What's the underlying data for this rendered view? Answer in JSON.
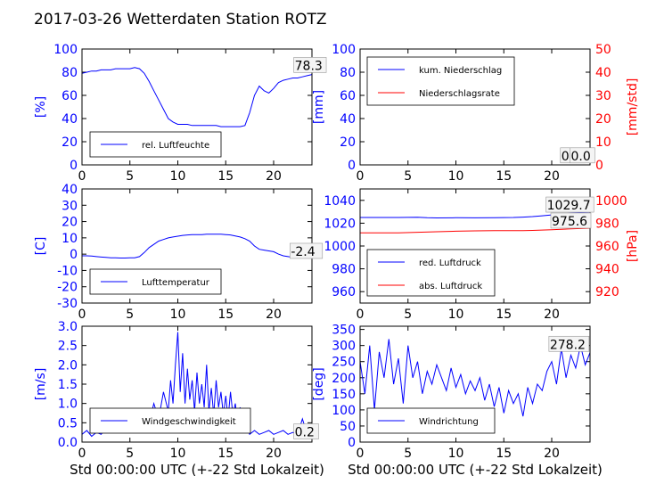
{
  "page_title": "2017-03-26 Wetterdaten Station ROTZ",
  "colors": {
    "primary": "#0000ff",
    "secondary": "#ff0000",
    "axis": "#000000"
  },
  "chart_data": [
    {
      "id": "humidity",
      "type": "line",
      "ylabel": "[%]",
      "ylabel_color": "#0000ff",
      "ylim": [
        0,
        100
      ],
      "yticks": [
        0,
        20,
        40,
        60,
        80,
        100
      ],
      "xlim": [
        0,
        24
      ],
      "xticks": [
        0,
        5,
        10,
        15,
        20
      ],
      "series": [
        {
          "name": "rel. Luftfeuchte",
          "color": "#0000ff",
          "x": [
            0,
            0.5,
            1,
            1.5,
            2,
            2.5,
            3,
            3.5,
            4,
            4.5,
            5,
            5.5,
            6,
            6.5,
            7,
            7.5,
            8,
            8.5,
            9,
            9.5,
            10,
            10.5,
            11,
            11.5,
            12,
            12.5,
            13,
            13.5,
            14,
            14.5,
            15,
            15.5,
            16,
            16.5,
            17,
            17.5,
            18,
            18.5,
            19,
            19.5,
            20,
            20.5,
            21,
            21.5,
            22,
            22.5,
            23,
            23.5,
            24
          ],
          "y": [
            79,
            80,
            81,
            81,
            82,
            82,
            82,
            83,
            83,
            83,
            83,
            84,
            83,
            79,
            72,
            64,
            56,
            48,
            40,
            37,
            35,
            35,
            35,
            34,
            34,
            34,
            34,
            34,
            34,
            33,
            33,
            33,
            33,
            33,
            34,
            45,
            60,
            68,
            64,
            62,
            66,
            71,
            73,
            74,
            75,
            75,
            76,
            77,
            78
          ]
        }
      ],
      "legend": "lower-left",
      "annotations": [
        {
          "text": "78.3",
          "x": 22.2,
          "y": 82
        }
      ]
    },
    {
      "id": "precipitation",
      "type": "line",
      "ylabel": "[mm]",
      "ylabel_color": "#0000ff",
      "ylim": [
        0,
        100
      ],
      "yticks": [
        0,
        20,
        40,
        60,
        80,
        100
      ],
      "y2label": "[mm/std]",
      "y2label_color": "#ff0000",
      "y2lim": [
        0,
        50
      ],
      "y2ticks": [
        0,
        10,
        20,
        30,
        40,
        50
      ],
      "xlim": [
        0,
        24
      ],
      "xticks": [
        0,
        5,
        10,
        15,
        20
      ],
      "series": [
        {
          "name": "kum. Niederschlag",
          "color": "#0000ff",
          "x": [
            0,
            24
          ],
          "y": [
            0,
            0
          ]
        },
        {
          "name": "Niederschlagsrate",
          "color": "#ff0000",
          "x": [
            0,
            24
          ],
          "y": [
            0,
            0
          ],
          "axis": "y2"
        }
      ],
      "legend": "upper-left",
      "annotations": [
        {
          "text": "0.0",
          "x": 21.0,
          "y": 4
        },
        {
          "text": "0.0",
          "x": 22.0,
          "y": 4
        }
      ]
    },
    {
      "id": "temperature",
      "type": "line",
      "ylabel": "[C]",
      "ylabel_color": "#0000ff",
      "ylim": [
        -30,
        40
      ],
      "yticks": [
        -30,
        -20,
        -10,
        0,
        10,
        20,
        30,
        40
      ],
      "xlim": [
        0,
        24
      ],
      "xticks": [
        0,
        5,
        10,
        15,
        20
      ],
      "series": [
        {
          "name": "Lufttemperatur",
          "color": "#0000ff",
          "x": [
            0,
            0.5,
            1,
            1.5,
            2,
            2.5,
            3,
            3.5,
            4,
            4.5,
            5,
            5.5,
            6,
            6.5,
            7,
            7.5,
            8,
            8.5,
            9,
            9.5,
            10,
            10.5,
            11,
            11.5,
            12,
            12.5,
            13,
            13.5,
            14,
            14.5,
            15,
            15.5,
            16,
            16.5,
            17,
            17.5,
            18,
            18.5,
            19,
            19.5,
            20,
            20.5,
            21,
            21.5,
            22,
            22.5,
            23,
            23.5,
            24
          ],
          "y": [
            -1,
            -1,
            -1.2,
            -1.5,
            -1.8,
            -2,
            -2.2,
            -2.3,
            -2.4,
            -2.4,
            -2.3,
            -2.2,
            -1.5,
            1,
            4,
            6,
            8,
            9,
            10,
            10.5,
            11,
            11.5,
            11.8,
            12,
            12,
            12,
            12.2,
            12.3,
            12.3,
            12.2,
            12,
            11.8,
            11.2,
            10.5,
            9.5,
            8,
            5,
            3,
            2.5,
            2,
            1.5,
            0,
            -1,
            -1.5,
            -2,
            -2.2,
            -2.3,
            -2.4,
            -2.4
          ]
        }
      ],
      "legend": "lower-left",
      "annotations": [
        {
          "text": "-2.4",
          "x": 21.8,
          "y": -1
        }
      ]
    },
    {
      "id": "pressure",
      "type": "line",
      "ylabel": "",
      "ylabel_color": "#0000ff",
      "ylim": [
        950,
        1050
      ],
      "yticks": [
        960,
        980,
        1000,
        1020,
        1040
      ],
      "y2label": "[hPa]",
      "y2label_color": "#ff0000",
      "y2lim": [
        910,
        1010
      ],
      "y2ticks": [
        920,
        940,
        960,
        980,
        1000
      ],
      "xlim": [
        0,
        24
      ],
      "xticks": [
        0,
        5,
        10,
        15,
        20
      ],
      "series": [
        {
          "name": "red. Luftdruck",
          "color": "#0000ff",
          "x": [
            0,
            2,
            4,
            6,
            7,
            8,
            10,
            12,
            14,
            16,
            17,
            18,
            19,
            20,
            21,
            22,
            23,
            24
          ],
          "y": [
            1025,
            1025,
            1025,
            1025.2,
            1024.8,
            1024.6,
            1024.8,
            1024.7,
            1024.8,
            1025,
            1025.3,
            1025.8,
            1026.5,
            1027.3,
            1028,
            1028.8,
            1029.3,
            1029.7
          ]
        },
        {
          "name": "abs. Luftdruck",
          "color": "#ff0000",
          "axis": "y2",
          "x": [
            0,
            2,
            4,
            6,
            8,
            10,
            12,
            14,
            16,
            17,
            18,
            19,
            20,
            21,
            22,
            23,
            24
          ],
          "y": [
            971.5,
            971.5,
            971.6,
            972,
            972.5,
            973,
            973.3,
            973.4,
            973.5,
            973.5,
            973.7,
            974,
            974.3,
            974.7,
            975,
            975.3,
            975.6
          ]
        }
      ],
      "legend": "lower-left",
      "annotations": [
        {
          "text": "1029.7",
          "x": 19.5,
          "y": 1032
        },
        {
          "text": "975.6",
          "x": 20.0,
          "y": 1018
        }
      ]
    },
    {
      "id": "windspeed",
      "type": "line",
      "ylabel": "[m/s]",
      "ylabel_color": "#0000ff",
      "ylim": [
        0,
        3.0
      ],
      "yticks": [
        0.0,
        0.5,
        1.0,
        1.5,
        2.0,
        2.5,
        3.0
      ],
      "xlim": [
        0,
        24
      ],
      "xticks": [
        0,
        5,
        10,
        15,
        20
      ],
      "series": [
        {
          "name": "Windgeschwindigkeit",
          "color": "#0000ff",
          "x": [
            0,
            0.5,
            1,
            1.5,
            2,
            2.5,
            3,
            3.5,
            4,
            4.5,
            5,
            5.5,
            6,
            6.5,
            7,
            7.5,
            8,
            8.5,
            9,
            9.25,
            9.5,
            9.75,
            10,
            10.25,
            10.5,
            10.75,
            11,
            11.25,
            11.5,
            11.75,
            12,
            12.25,
            12.5,
            12.75,
            13,
            13.25,
            13.5,
            13.75,
            14,
            14.25,
            14.5,
            14.75,
            15,
            15.25,
            15.5,
            15.75,
            16,
            16.25,
            16.5,
            16.75,
            17,
            17.5,
            18,
            18.5,
            19,
            19.5,
            20,
            20.5,
            21,
            21.5,
            22,
            22.5,
            23,
            23.5,
            24
          ],
          "y": [
            0.2,
            0.3,
            0.15,
            0.25,
            0.2,
            0.35,
            0.25,
            0.3,
            0.4,
            0.3,
            0.5,
            0.3,
            0.6,
            0.8,
            0.5,
            1.0,
            0.6,
            1.3,
            0.8,
            1.6,
            1.0,
            2.0,
            2.85,
            1.3,
            2.3,
            1.0,
            1.9,
            1.1,
            1.6,
            0.8,
            1.8,
            1.0,
            1.5,
            0.9,
            2.0,
            0.8,
            1.4,
            0.7,
            1.6,
            0.9,
            1.3,
            0.7,
            1.2,
            0.6,
            1.3,
            0.7,
            1.0,
            0.5,
            0.9,
            0.4,
            0.5,
            0.2,
            0.3,
            0.2,
            0.25,
            0.3,
            0.2,
            0.25,
            0.3,
            0.2,
            0.25,
            0.2,
            0.6,
            0.2,
            0.2
          ]
        }
      ],
      "legend": "lower-left",
      "annotations": [
        {
          "text": "0.2",
          "x": 22.2,
          "y": 0.15
        }
      ]
    },
    {
      "id": "winddirection",
      "type": "line",
      "ylabel": "[deg]",
      "ylabel_color": "#0000ff",
      "ylim": [
        0,
        360
      ],
      "yticks": [
        0,
        50,
        100,
        150,
        200,
        250,
        300,
        350
      ],
      "xlim": [
        0,
        24
      ],
      "xticks": [
        0,
        5,
        10,
        15,
        20
      ],
      "series": [
        {
          "name": "Windrichtung",
          "color": "#0000ff",
          "x": [
            0,
            0.5,
            1,
            1.5,
            2,
            2.5,
            3,
            3.5,
            4,
            4.5,
            5,
            5.5,
            6,
            6.5,
            7,
            7.5,
            8,
            8.5,
            9,
            9.5,
            10,
            10.5,
            11,
            11.5,
            12,
            12.5,
            13,
            13.5,
            14,
            14.5,
            15,
            15.5,
            16,
            16.5,
            17,
            17.5,
            18,
            18.5,
            19,
            19.5,
            20,
            20.5,
            21,
            21.5,
            22,
            22.5,
            23,
            23.5,
            24
          ],
          "y": [
            250,
            150,
            300,
            100,
            280,
            200,
            320,
            180,
            260,
            120,
            300,
            200,
            250,
            150,
            220,
            180,
            240,
            200,
            160,
            230,
            170,
            210,
            150,
            190,
            160,
            200,
            130,
            180,
            110,
            170,
            90,
            160,
            120,
            150,
            80,
            170,
            120,
            180,
            160,
            220,
            250,
            180,
            290,
            200,
            270,
            230,
            300,
            240,
            278
          ]
        }
      ],
      "legend": "lower-left",
      "annotations": [
        {
          "text": "278.2",
          "x": 19.8,
          "y": 290
        }
      ]
    }
  ],
  "xlabel_left": "Std 00:00:00 UTC (+-22 Std Lokalzeit)",
  "xlabel_right": "Std 00:00:00 UTC (+-22 Std Lokalzeit)"
}
